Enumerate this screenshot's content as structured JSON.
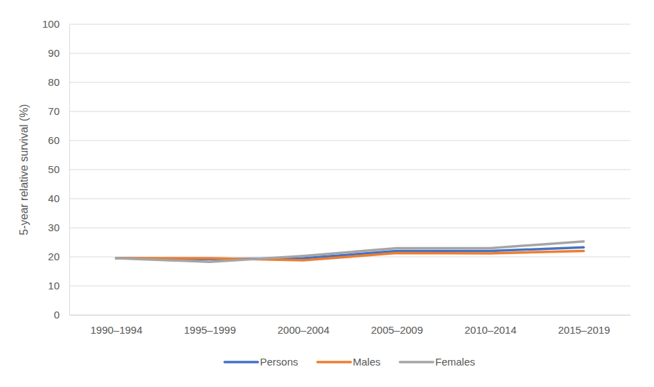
{
  "chart_data": {
    "type": "line",
    "y_label": "5-year relative survival (%)",
    "categories": [
      "1990–1994",
      "1995–1999",
      "2000–2004",
      "2005–2009",
      "2010–2014",
      "2015–2019"
    ],
    "series": [
      {
        "name": "Persons",
        "color": "#4472c4",
        "values": [
          19.5,
          19.2,
          19.5,
          22.0,
          22.0,
          23.3
        ]
      },
      {
        "name": "Males",
        "color": "#ed7d31",
        "values": [
          19.5,
          19.5,
          18.8,
          21.3,
          21.2,
          22.0
        ]
      },
      {
        "name": "Females",
        "color": "#a5a5a5",
        "values": [
          19.5,
          18.3,
          20.3,
          23.0,
          23.0,
          25.3
        ]
      }
    ],
    "ylim": [
      0,
      100
    ],
    "yticks": [
      0,
      10,
      20,
      30,
      40,
      50,
      60,
      70,
      80,
      90,
      100
    ],
    "grid": true,
    "legend": "bottom"
  }
}
